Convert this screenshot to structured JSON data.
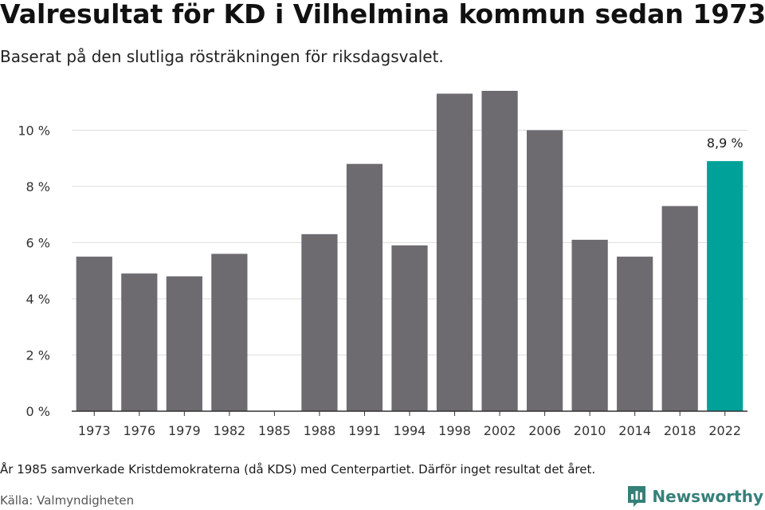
{
  "title": "Valresultat för KD i Vilhelmina kommun sedan 1973",
  "subtitle": "Baserat på den slutliga rösträkningen för riksdagsvalet.",
  "note": "År 1985 samverkade Kristdemokraterna (då KDS) med Centerpartiet. Därför inget resultat det året.",
  "source": "Källa: Valmyndigheten",
  "brand": {
    "name": "Newsworthy",
    "icon": "newsworthy-logo-icon",
    "color": "#36807a"
  },
  "chart_data": {
    "type": "bar",
    "categories": [
      "1973",
      "1976",
      "1979",
      "1982",
      "1985",
      "1988",
      "1991",
      "1994",
      "1998",
      "2002",
      "2006",
      "2010",
      "2014",
      "2018",
      "2022"
    ],
    "values": [
      5.5,
      4.9,
      4.8,
      5.6,
      null,
      6.3,
      8.8,
      5.9,
      11.3,
      11.4,
      10.0,
      6.1,
      5.5,
      7.3,
      8.9
    ],
    "ylim": [
      0,
      11.4
    ],
    "yticks": [
      0,
      2,
      4,
      6,
      8,
      10
    ],
    "ytick_labels": [
      "0 %",
      "2 %",
      "4 %",
      "6 %",
      "8 %",
      "10 %"
    ],
    "grid": true,
    "bar_color": "#6d6b70",
    "highlight_index": 14,
    "highlight_color": "#00a198",
    "highlight_label": "8,9 %"
  }
}
